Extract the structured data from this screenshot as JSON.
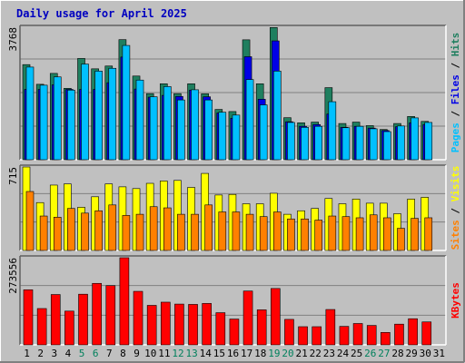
{
  "title": "Daily usage for April 2025",
  "colors": {
    "background": "#c0c0c0",
    "hits": "#00bfff",
    "files": "#0000e6",
    "pages": "#00c0ff",
    "visits": "#ffff00",
    "sites": "#ff8000",
    "kbytes": "#ff0000",
    "hits_dark": "#1f7f5f",
    "weekend_tick": "#00805c",
    "weekday_tick": "#000000"
  },
  "chart_data": [
    {
      "type": "bar",
      "panel": "hits_files_pages",
      "ymax_label": "3768",
      "ylim": [
        0,
        3768
      ],
      "categories": [
        "1",
        "2",
        "3",
        "4",
        "5",
        "6",
        "7",
        "8",
        "9",
        "10",
        "11",
        "12",
        "13",
        "14",
        "15",
        "16",
        "17",
        "18",
        "19",
        "20",
        "21",
        "22",
        "23",
        "24",
        "25",
        "26",
        "27",
        "28",
        "29",
        "30",
        "31"
      ],
      "weekend_days": [
        "5",
        "6",
        "12",
        "13",
        "19",
        "20",
        "26",
        "27"
      ],
      "series": [
        {
          "name": "Hits",
          "values": [
            2705,
            2145,
            2455,
            2030,
            2880,
            2585,
            2665,
            3415,
            2380,
            1880,
            2160,
            1880,
            2160,
            1875,
            1430,
            1370,
            3410,
            2160,
            3760,
            1195,
            1050,
            1070,
            2050,
            1030,
            1070,
            970,
            860,
            1030,
            1230,
            1090,
            0
          ]
        },
        {
          "name": "Files",
          "values": [
            2000,
            2000,
            2130,
            2000,
            2000,
            2000,
            2190,
            2920,
            2010,
            1780,
            1830,
            1800,
            1980,
            1790,
            1330,
            1180,
            2930,
            1720,
            3380,
            1080,
            950,
            1000,
            1300,
            920,
            950,
            900,
            830,
            940,
            1050,
            1000,
            0
          ]
        },
        {
          "name": "Pages",
          "values": [
            2635,
            2120,
            2355,
            1980,
            2720,
            2520,
            2600,
            3250,
            2265,
            1790,
            2080,
            1700,
            1990,
            1700,
            1350,
            1270,
            2280,
            1560,
            2520,
            1060,
            920,
            950,
            1650,
            910,
            950,
            880,
            800,
            960,
            1190,
            1060,
            0
          ]
        }
      ],
      "right_label": [
        "Pages",
        "Files",
        "Hits"
      ]
    },
    {
      "type": "bar",
      "panel": "visits_sites",
      "ymax_label": "715",
      "ylim": [
        0,
        715
      ],
      "categories": [
        "1",
        "2",
        "3",
        "4",
        "5",
        "6",
        "7",
        "8",
        "9",
        "10",
        "11",
        "12",
        "13",
        "14",
        "15",
        "16",
        "17",
        "18",
        "19",
        "20",
        "21",
        "22",
        "23",
        "24",
        "25",
        "26",
        "27",
        "28",
        "29",
        "30",
        "31"
      ],
      "series": [
        {
          "name": "Visits",
          "values": [
            715,
            410,
            560,
            570,
            370,
            460,
            570,
            545,
            530,
            575,
            595,
            600,
            540,
            660,
            475,
            480,
            400,
            400,
            490,
            310,
            340,
            360,
            445,
            400,
            440,
            405,
            405,
            315,
            440,
            455,
            0
          ]
        },
        {
          "name": "Sites",
          "values": [
            505,
            295,
            285,
            360,
            320,
            340,
            390,
            300,
            310,
            375,
            365,
            310,
            310,
            390,
            330,
            330,
            310,
            290,
            330,
            270,
            270,
            260,
            295,
            290,
            280,
            305,
            280,
            190,
            275,
            280,
            0
          ]
        }
      ],
      "right_label": [
        "Sites",
        "Visits"
      ]
    },
    {
      "type": "bar",
      "panel": "kbytes",
      "ymax_label": "273556",
      "ylim": [
        0,
        273556
      ],
      "categories": [
        "1",
        "2",
        "3",
        "4",
        "5",
        "6",
        "7",
        "8",
        "9",
        "10",
        "11",
        "12",
        "13",
        "14",
        "15",
        "16",
        "17",
        "18",
        "19",
        "20",
        "21",
        "22",
        "23",
        "24",
        "25",
        "26",
        "27",
        "28",
        "29",
        "30",
        "31"
      ],
      "series": [
        {
          "name": "KBytes",
          "values": [
            173000,
            114000,
            158000,
            106000,
            159000,
            193000,
            186000,
            273556,
            168000,
            124000,
            134000,
            128000,
            127000,
            130000,
            101000,
            81000,
            169000,
            110000,
            177000,
            80000,
            57000,
            57000,
            111000,
            58000,
            67000,
            61000,
            39000,
            65000,
            82000,
            72000,
            0
          ]
        }
      ],
      "right_label": [
        "KBytes"
      ]
    }
  ]
}
